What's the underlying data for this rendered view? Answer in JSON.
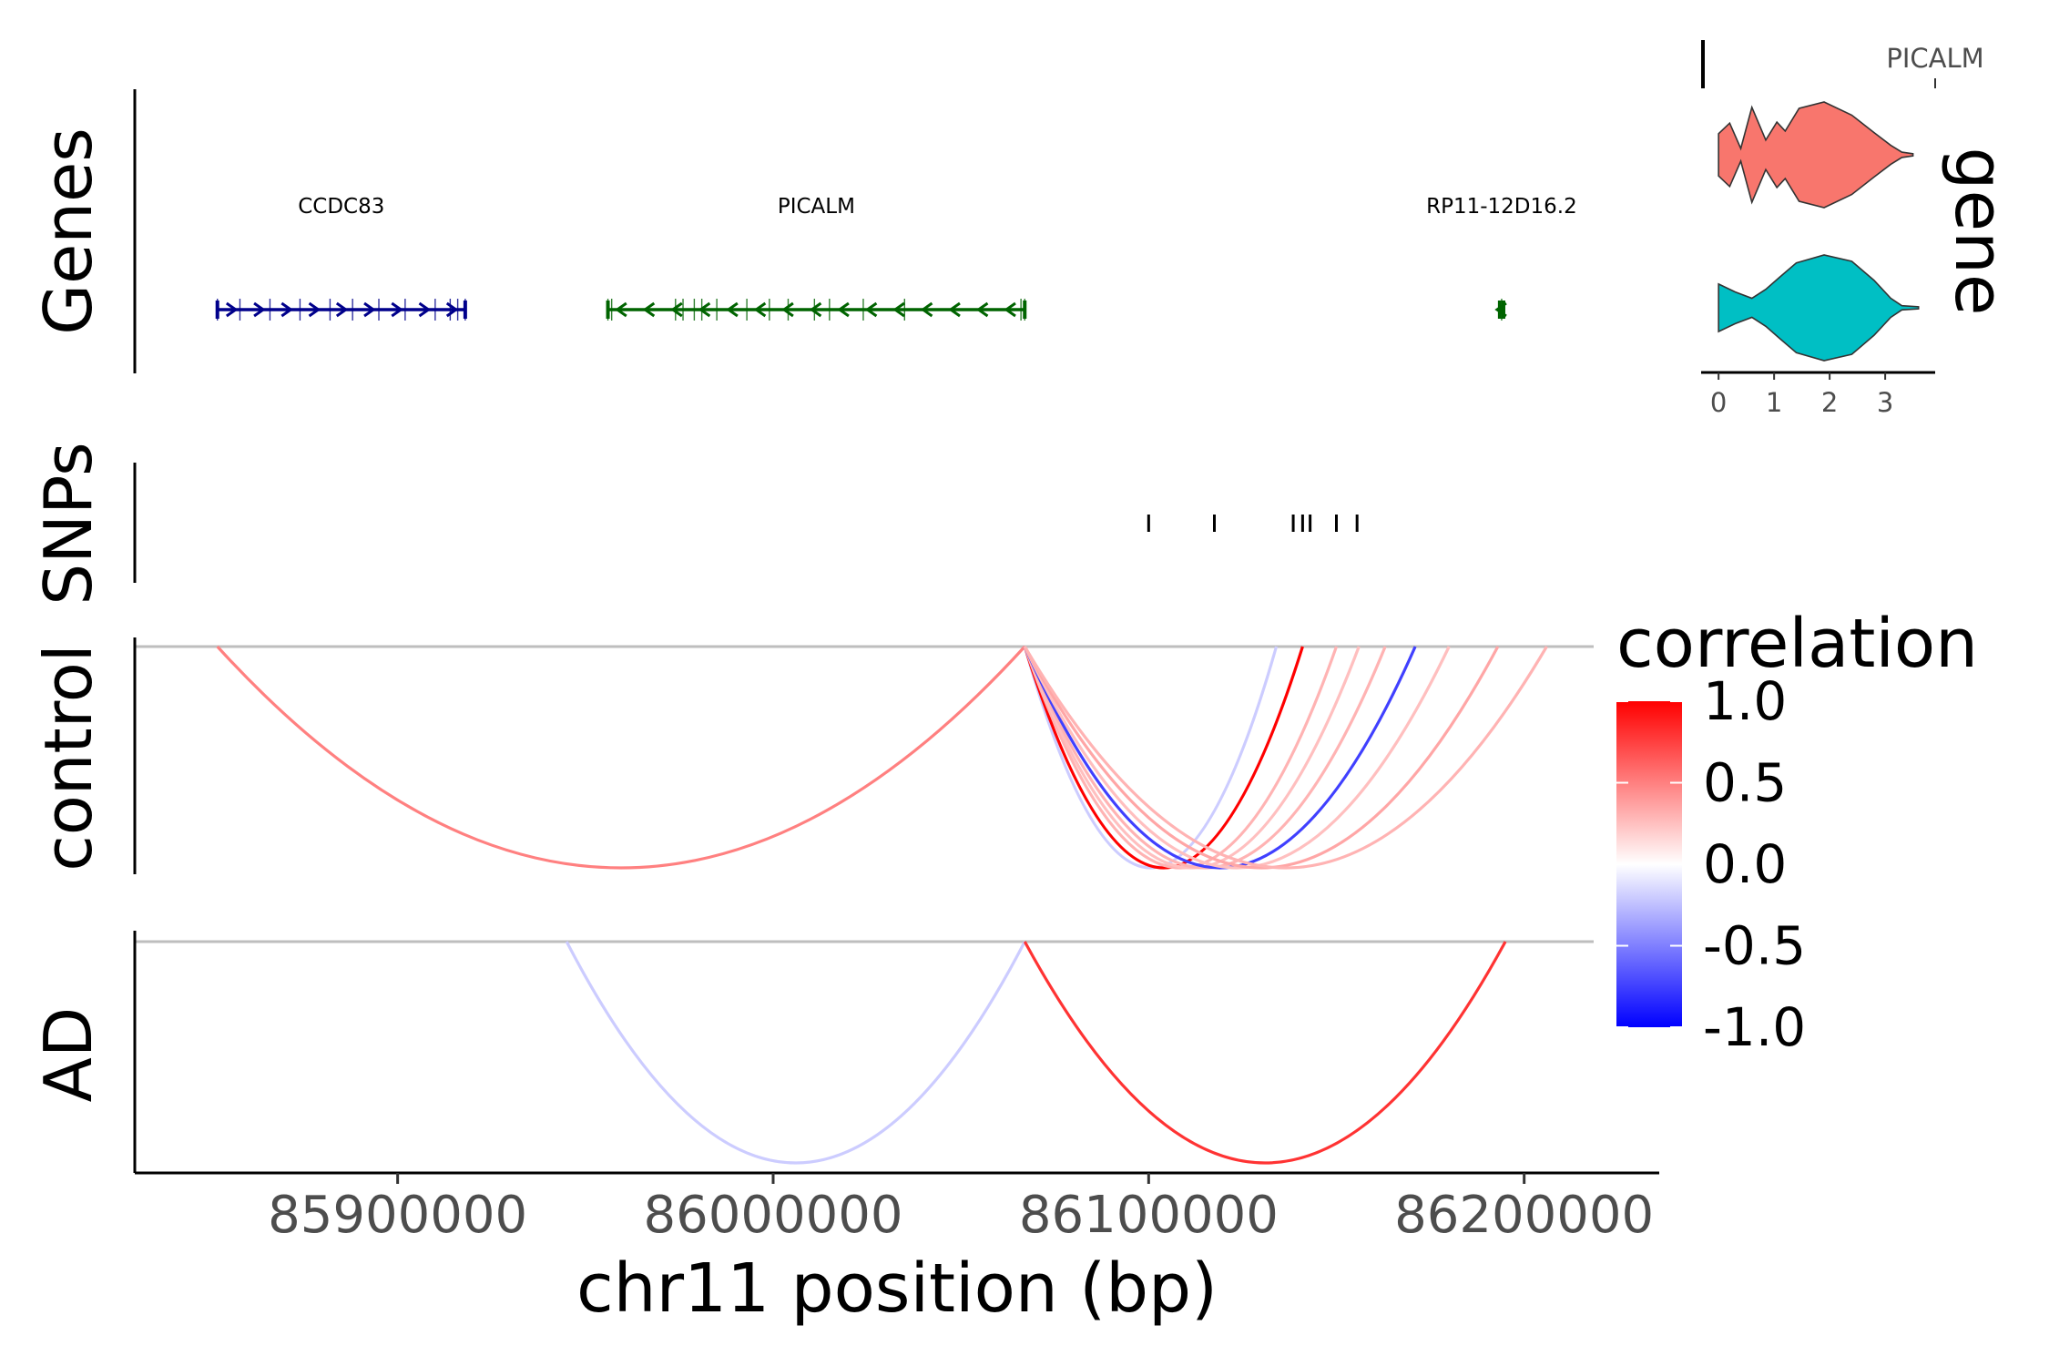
{
  "chart_data": {
    "type": "genome-track-plot",
    "x_axis": {
      "label": "chr11 position (bp)",
      "range": [
        85830000,
        86235000
      ],
      "ticks": [
        85900000,
        86000000,
        86100000,
        86200000
      ],
      "tick_labels": [
        "85900000",
        "86000000",
        "86100000",
        "86200000"
      ]
    },
    "tracks": {
      "genes": {
        "label": "Genes",
        "genes": [
          {
            "name": "CCDC83",
            "start": 85852000,
            "end": 85918000,
            "strand": "+",
            "color": "#00008B",
            "exons": [
              85852000,
              85858000,
              85866000,
              85874000,
              85882000,
              85888000,
              85895000,
              85902000,
              85910000,
              85914000,
              85916000,
              85918000
            ]
          },
          {
            "name": "PICALM",
            "start": 85956000,
            "end": 86067000,
            "strand": "-",
            "color": "#006400",
            "exons": [
              85956000,
              85957000,
              85974000,
              85976000,
              85979000,
              85981000,
              85985000,
              85993000,
              85999000,
              86004000,
              86011000,
              86015000,
              86024000,
              86035000,
              86066000,
              86067000
            ]
          },
          {
            "name": "RP11-12D16.2",
            "start": 86193500,
            "end": 86194500,
            "strand": "-",
            "color": "#006400",
            "exons": [
              86194000
            ]
          }
        ]
      },
      "snps": {
        "label": "SNPs",
        "positions": [
          86100000,
          86117500,
          86138500,
          86141000,
          86143000,
          86150000,
          86155500
        ]
      },
      "loops": [
        {
          "label": "control",
          "links": [
            {
              "start": 85852000,
              "end": 86067000,
              "correlation": 0.5
            },
            {
              "start": 86067000,
              "end": 86134000,
              "correlation": -0.2
            },
            {
              "start": 86067000,
              "end": 86141000,
              "correlation": 1.0
            },
            {
              "start": 86067000,
              "end": 86150000,
              "correlation": 0.3
            },
            {
              "start": 86067000,
              "end": 86156000,
              "correlation": 0.25
            },
            {
              "start": 86067000,
              "end": 86163000,
              "correlation": 0.3
            },
            {
              "start": 86067000,
              "end": 86171000,
              "correlation": -0.75
            },
            {
              "start": 86067000,
              "end": 86180000,
              "correlation": 0.25
            },
            {
              "start": 86067000,
              "end": 86193000,
              "correlation": 0.35
            },
            {
              "start": 86067000,
              "end": 86206000,
              "correlation": 0.3
            }
          ]
        },
        {
          "label": "AD",
          "links": [
            {
              "start": 85945000,
              "end": 86067000,
              "correlation": -0.2
            },
            {
              "start": 86067000,
              "end": 86195000,
              "correlation": 0.8
            }
          ]
        }
      ]
    },
    "legend": {
      "title": "correlation",
      "range": [
        -1.0,
        1.0
      ],
      "breaks": [
        1.0,
        0.5,
        0.0,
        -0.5,
        -1.0
      ],
      "break_labels": [
        "1.0",
        "0.5",
        "0.0",
        "-0.5",
        "-1.0"
      ],
      "low_color": "#0000FF",
      "mid_color": "#FFFFFF",
      "high_color": "#FF0000",
      "placement": "right"
    },
    "inset": {
      "type": "violin",
      "title": "PICALM",
      "strip_label": "gene",
      "x_ticks": [
        0,
        1,
        2,
        3
      ],
      "x_tick_labels": [
        "0",
        "1",
        "2",
        "3"
      ],
      "x_range": [
        -0.15,
        3.9
      ],
      "groups": [
        {
          "color": "#F8766D",
          "density": [
            [
              0,
              0.4
            ],
            [
              0.2,
              0.6
            ],
            [
              0.4,
              0.12
            ],
            [
              0.6,
              0.9
            ],
            [
              0.85,
              0.28
            ],
            [
              1.05,
              0.62
            ],
            [
              1.2,
              0.45
            ],
            [
              1.45,
              0.88
            ],
            [
              1.9,
              1.0
            ],
            [
              2.4,
              0.75
            ],
            [
              2.8,
              0.42
            ],
            [
              3.1,
              0.18
            ],
            [
              3.3,
              0.05
            ],
            [
              3.5,
              0.02
            ]
          ]
        },
        {
          "color": "#00BFC4",
          "density": [
            [
              0,
              0.45
            ],
            [
              0.3,
              0.3
            ],
            [
              0.6,
              0.18
            ],
            [
              0.85,
              0.35
            ],
            [
              1.1,
              0.58
            ],
            [
              1.4,
              0.85
            ],
            [
              1.9,
              1.0
            ],
            [
              2.4,
              0.88
            ],
            [
              2.8,
              0.52
            ],
            [
              3.1,
              0.18
            ],
            [
              3.3,
              0.04
            ],
            [
              3.6,
              0.02
            ]
          ]
        }
      ]
    }
  }
}
